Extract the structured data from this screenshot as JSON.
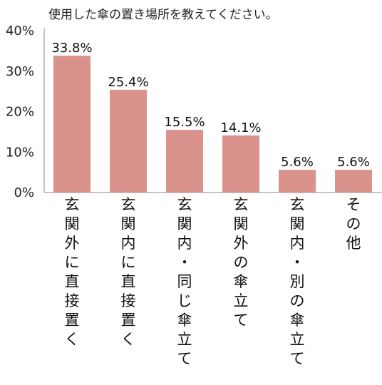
{
  "chart_data": {
    "type": "bar",
    "title": "使用した傘の置き場所を教えてください。",
    "categories": [
      "玄関外に直接置く",
      "玄関内に直接置く",
      "玄関内・同じ傘立て",
      "玄関外の傘立て",
      "玄関内・別の傘立て",
      "その他"
    ],
    "values": [
      33.8,
      25.4,
      15.5,
      14.1,
      5.6,
      5.6
    ],
    "value_labels": [
      "33.8%",
      "25.4%",
      "15.5%",
      "14.1%",
      "5.6%",
      "5.6%"
    ],
    "y_ticks": [
      "0%",
      "10%",
      "20%",
      "30%",
      "40%"
    ],
    "ylim": [
      0,
      40
    ],
    "xlabel": "",
    "ylabel": "",
    "bar_color": "#d9928c",
    "grid": false,
    "legend": "none"
  }
}
